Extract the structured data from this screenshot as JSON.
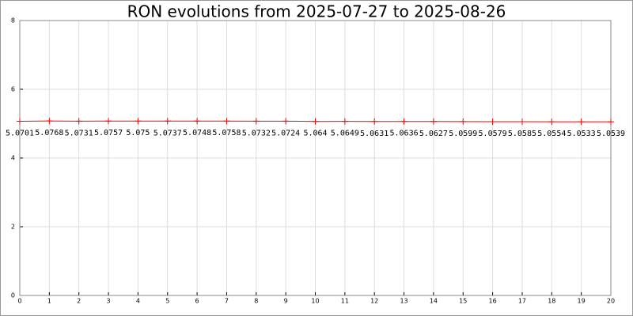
{
  "chart_data": {
    "type": "line",
    "title": "RON evolutions from 2025-07-27 to 2025-08-26",
    "x": [
      0,
      1,
      2,
      3,
      4,
      5,
      6,
      7,
      8,
      9,
      10,
      11,
      12,
      13,
      14,
      15,
      16,
      17,
      18,
      19,
      20
    ],
    "values": [
      5.0701,
      5.0768,
      5.0731,
      5.0757,
      5.075,
      5.0737,
      5.0748,
      5.0758,
      5.0732,
      5.0724,
      5.064,
      5.0649,
      5.0631,
      5.0636,
      5.0627,
      5.0599,
      5.0579,
      5.0585,
      5.0554,
      5.0533,
      5.0539
    ],
    "color": "#ff0000",
    "xlim": [
      0,
      20
    ],
    "xticks": [
      0,
      1,
      2,
      3,
      4,
      5,
      6,
      7,
      8,
      9,
      10,
      11,
      12,
      13,
      14,
      15,
      16,
      17,
      18,
      19,
      20
    ],
    "ylim": [
      0,
      8
    ],
    "yticks": [
      0,
      2,
      4,
      6,
      8
    ],
    "grid": true
  }
}
